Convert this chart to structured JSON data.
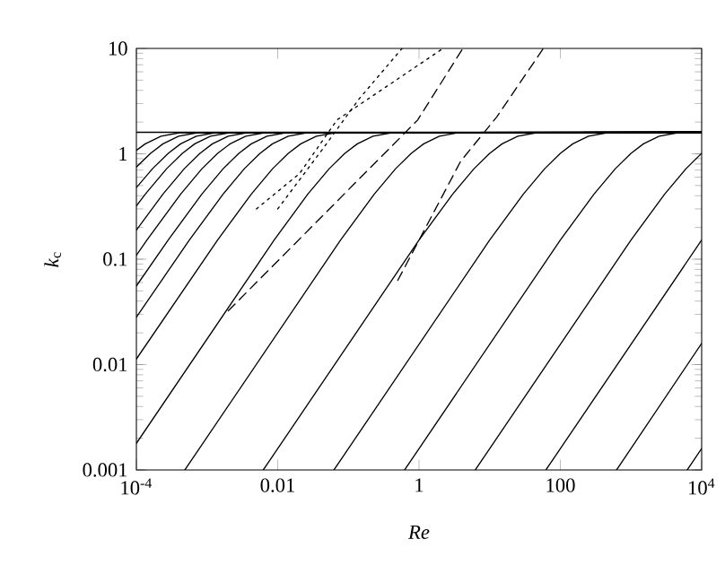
{
  "chart_data": {
    "type": "line",
    "xlabel": "*Re*",
    "ylabel": "*k*$_{c}$",
    "log": "xy",
    "line_style": "solid",
    "marker": "none",
    "xlim": [
      0.0001,
      10000
    ],
    "ylim": [
      0.001,
      10
    ],
    "xticks": [
      {
        "value": 0.0001,
        "label": "10$^{-4}$"
      },
      0.01,
      1,
      100,
      {
        "value": 10000,
        "label": "10$^{4}$"
      }
    ],
    "yticks": [
      0.001,
      0.01,
      0.1,
      1,
      10
    ],
    "series": [
      {
        "color": "#000000",
        "x": [
          0.0001,
          10000
        ],
        "values": [
          1.6,
          1.6
        ]
      },
      {
        "color": "#000000",
        "x": [
          0.0001,
          0.0001336,
          0.000223,
          0.00041,
          10000
        ],
        "values": [
          1.079,
          1.243,
          1.469,
          1.584,
          1.6
        ]
      },
      {
        "color": "#000000",
        "x": [
          0.0001,
          0.0001585,
          0.000238,
          0.000396,
          0.000729,
          10000
        ],
        "values": [
          0.749,
          1.011,
          1.243,
          1.469,
          1.584,
          1.6
        ]
      },
      {
        "color": "#000000",
        "x": [
          0.0001,
          0.000169,
          0.000282,
          0.000423,
          0.000705,
          0.0013,
          10000
        ],
        "values": [
          0.478,
          0.722,
          1.011,
          1.243,
          1.469,
          1.584,
          1.6
        ]
      },
      {
        "color": "#000000",
        "x": [
          0.0001,
          0.000134,
          0.000268,
          0.000447,
          0.00067,
          0.001117,
          0.00206,
          10000
        ],
        "values": [
          0.321,
          0.415,
          0.722,
          1.011,
          1.243,
          1.469,
          1.584,
          1.6
        ]
      },
      {
        "color": "#000000",
        "x": [
          0.0001,
          0.000238,
          0.000476,
          0.000794,
          0.00119,
          0.00199,
          0.00366,
          10000
        ],
        "values": [
          0.189,
          0.415,
          0.722,
          1.011,
          1.243,
          1.469,
          1.584,
          1.6
        ]
      },
      {
        "color": "#000000",
        "x": [
          0.0001,
          0.000141,
          0.000424,
          0.000847,
          0.00141,
          0.00212,
          0.00353,
          0.0065,
          10000
        ],
        "values": [
          0.109,
          0.152,
          0.415,
          0.722,
          1.011,
          1.243,
          1.469,
          1.584,
          1.6
        ]
      },
      {
        "color": "#000000",
        "x": [
          0.0001,
          0.000282,
          0.000845,
          0.00169,
          0.00282,
          0.00423,
          0.00705,
          0.013,
          10000
        ],
        "values": [
          0.0558,
          0.152,
          0.415,
          0.722,
          1.011,
          1.243,
          1.469,
          1.584,
          1.6
        ]
      },
      {
        "color": "#000000",
        "x": [
          0.0001,
          0.000562,
          0.00169,
          0.00337,
          0.00562,
          0.00843,
          0.0141,
          0.0259,
          10000
        ],
        "values": [
          0.0282,
          0.152,
          0.415,
          0.722,
          1.011,
          1.243,
          1.469,
          1.584,
          1.6
        ]
      },
      {
        "color": "#000000",
        "x": [
          0.0001,
          0.00141,
          0.00424,
          0.00847,
          0.0141,
          0.0212,
          0.0353,
          0.065,
          10000
        ],
        "values": [
          0.01129,
          0.152,
          0.415,
          0.722,
          1.011,
          1.243,
          1.469,
          1.584,
          1.6
        ]
      },
      {
        "color": "#000000",
        "x": [
          0.0001,
          0.00891,
          0.0267,
          0.0535,
          0.0891,
          0.134,
          0.223,
          0.41,
          10000
        ],
        "values": [
          0.00179,
          0.152,
          0.415,
          0.722,
          1.011,
          1.243,
          1.469,
          1.584,
          1.6
        ]
      },
      {
        "color": "#000000",
        "x": [
          0.000485,
          0.0776,
          0.233,
          0.466,
          0.776,
          1.164,
          1.94,
          3.57,
          10000
        ],
        "values": [
          0.001,
          0.152,
          0.415,
          0.722,
          1.011,
          1.243,
          1.469,
          1.584,
          1.6
        ]
      },
      {
        "color": "#000000",
        "x": [
          0.00625,
          1,
          3,
          6,
          10,
          15,
          25,
          46,
          10000
        ],
        "values": [
          0.001,
          0.152,
          0.415,
          0.722,
          1.011,
          1.243,
          1.469,
          1.584,
          1.6
        ]
      },
      {
        "color": "#000000",
        "x": [
          0.0625,
          10,
          30,
          60,
          100,
          150,
          250,
          460,
          10000
        ],
        "values": [
          0.001,
          0.152,
          0.415,
          0.722,
          1.011,
          1.243,
          1.469,
          1.584,
          1.6
        ]
      },
      {
        "color": "#000000",
        "x": [
          0.625,
          100,
          300,
          600,
          1000,
          1500,
          2500,
          4600,
          10000
        ],
        "values": [
          0.001,
          0.152,
          0.415,
          0.722,
          1.011,
          1.243,
          1.469,
          1.584,
          1.6
        ]
      },
      {
        "color": "#000000",
        "x": [
          6.25,
          1000,
          3000,
          6000,
          10000
        ],
        "values": [
          0.001,
          0.152,
          0.415,
          0.722,
          1.011
        ]
      },
      {
        "color": "#000000",
        "x": [
          62.5,
          10000
        ],
        "values": [
          0.001,
          0.152
        ]
      },
      {
        "color": "#000000",
        "x": [
          625,
          10000
        ],
        "values": [
          0.001,
          0.0159
        ]
      },
      {
        "color": "#000000",
        "x": [
          6250,
          10000
        ],
        "values": [
          0.001,
          0.0016
        ]
      },
      {
        "color": "#000000",
        "line_style": "dashed",
        "x": [
          0.501,
          3.89,
          12.6,
          57.5
        ],
        "values": [
          0.063,
          0.851,
          2.24,
          10
        ]
      },
      {
        "color": "#000000",
        "line_style": "dashed",
        "x": [
          0.002,
          0.955,
          4.17
        ],
        "values": [
          0.0324,
          2.09,
          10
        ]
      },
      {
        "color": "#000000",
        "line_style": "dotted",
        "x": [
          0.005,
          0.0204,
          0.0692,
          2.19
        ],
        "values": [
          0.3,
          0.65,
          2.1,
          10
        ]
      },
      {
        "color": "#000000",
        "line_style": "dotted",
        "x": [
          0.01,
          0.0437,
          0.141,
          0.575
        ],
        "values": [
          0.3,
          1.12,
          3.3,
          10
        ]
      }
    ]
  }
}
